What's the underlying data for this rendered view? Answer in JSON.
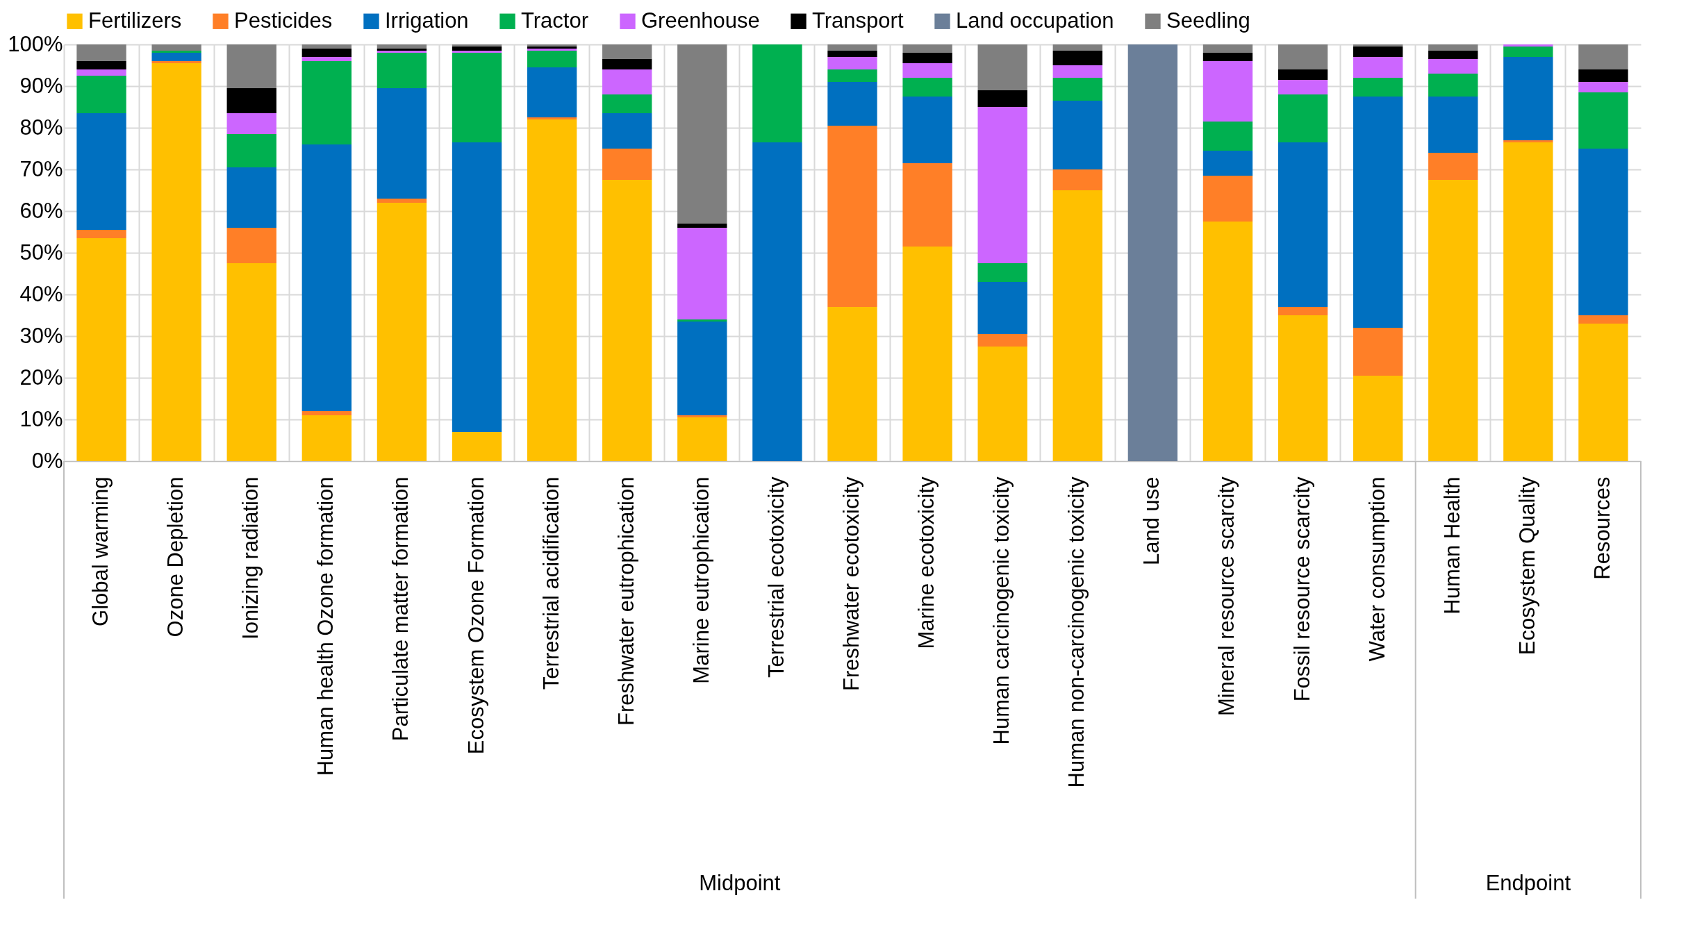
{
  "chart_data": {
    "type": "bar",
    "stacked": true,
    "legend": "top",
    "grid": true,
    "categories": [
      "Global warming",
      "Ozone Depletion",
      "Ionizing radiation",
      "Human health Ozone formation",
      "Particulate matter formation",
      "Ecosystem Ozone Formation",
      "Terrestrial acidification",
      "Freshwater eutrophication",
      "Marine eutrophication",
      "Terrestrial ecotoxicity",
      "Freshwater ecotoxicity",
      "Marine ecotoxicity",
      "Human carcinogenic toxicity",
      "Human non-carcinogenic toxicity",
      "Land use",
      "Mineral resource scarcity",
      "Fossil resource scarcity",
      "Water consumption",
      "Human Health",
      "Ecosystem Quality",
      "Resources"
    ],
    "ylim": [
      0,
      100
    ],
    "yticks": [
      {
        "value": 0,
        "label": "0%"
      },
      {
        "value": 10,
        "label": "10%"
      },
      {
        "value": 20,
        "label": "20%"
      },
      {
        "value": 30,
        "label": "30%"
      },
      {
        "value": 40,
        "label": "40%"
      },
      {
        "value": 50,
        "label": "50%"
      },
      {
        "value": 60,
        "label": "60%"
      },
      {
        "value": 70,
        "label": "70%"
      },
      {
        "value": 80,
        "label": "80%"
      },
      {
        "value": 90,
        "label": "90%"
      },
      {
        "value": 100,
        "label": "100%"
      }
    ],
    "series": [
      {
        "name": "Fertilizers",
        "color": "#ffc000",
        "values": [
          53.5,
          95.5,
          47.5,
          11,
          62,
          7,
          82,
          67.5,
          10.5,
          0,
          37,
          51.5,
          27.5,
          65,
          0,
          57.5,
          35,
          20.5,
          67.5,
          76.5,
          33
        ]
      },
      {
        "name": "Pesticides",
        "color": "#ff7f27",
        "values": [
          2,
          0.5,
          8.5,
          1,
          1,
          0,
          0.5,
          7.5,
          0.5,
          0,
          43.5,
          20,
          3,
          5,
          0,
          11,
          2,
          11.5,
          6.5,
          0.5,
          2
        ]
      },
      {
        "name": "Irrigation",
        "color": "#0070c0",
        "values": [
          28,
          2,
          14.5,
          64,
          26.5,
          69.5,
          12,
          8.5,
          22.5,
          76.5,
          10.5,
          16,
          12.5,
          16.5,
          0,
          6,
          39.5,
          55.5,
          13.5,
          20,
          40
        ]
      },
      {
        "name": "Tractor",
        "color": "#00b050",
        "values": [
          9,
          0.5,
          8,
          20,
          8.5,
          21.5,
          4,
          4.5,
          0.5,
          23.5,
          3,
          4.5,
          4.5,
          5.5,
          0,
          7,
          11.5,
          4.5,
          5.5,
          2.5,
          13.5
        ]
      },
      {
        "name": "Greenhouse",
        "color": "#cc66ff",
        "values": [
          1.5,
          0,
          5,
          1,
          0.5,
          0.5,
          0.5,
          6,
          22,
          0,
          3,
          3.5,
          37.5,
          3,
          0,
          14.5,
          3.5,
          5,
          3.5,
          0.5,
          2.5
        ]
      },
      {
        "name": "Transport",
        "color": "#000000",
        "values": [
          2,
          0,
          6,
          2,
          0.5,
          1,
          0.5,
          2.5,
          1,
          0,
          1.5,
          2.5,
          4,
          3.5,
          0,
          2,
          2.5,
          2.5,
          2,
          0,
          3
        ]
      },
      {
        "name": "Land occupation",
        "color": "#6b7f99",
        "values": [
          0,
          0,
          0,
          0,
          0,
          0,
          0,
          0,
          0,
          0,
          0,
          0,
          0,
          0,
          100,
          0,
          0,
          0,
          0,
          0,
          0
        ]
      },
      {
        "name": "Seedling",
        "color": "#7f7f7f",
        "values": [
          4,
          1.5,
          10.5,
          1,
          1,
          0.5,
          0.5,
          3.5,
          43,
          0,
          1.5,
          2,
          11,
          1.5,
          0,
          2,
          6,
          0.5,
          1.5,
          0,
          6
        ]
      }
    ],
    "annotations": [
      "Midpoint",
      "Endpoint"
    ]
  }
}
